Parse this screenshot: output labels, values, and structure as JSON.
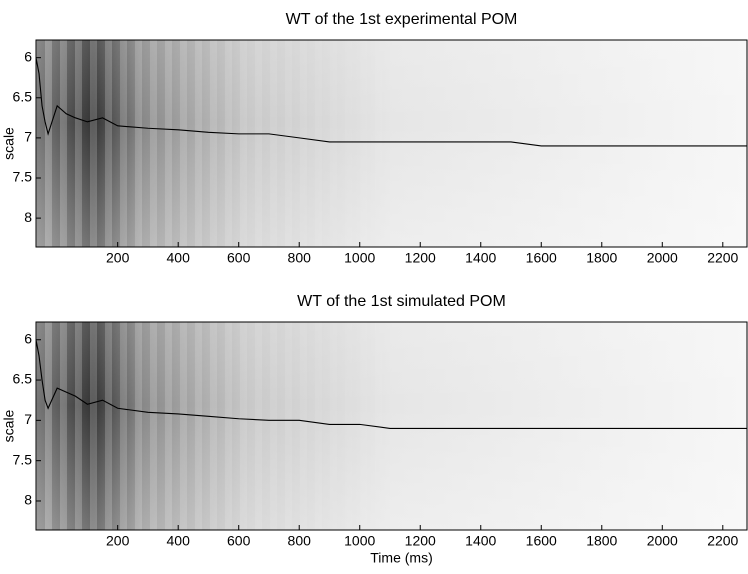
{
  "chart_data": [
    {
      "type": "line",
      "title": "WT of the 1st experimental POM",
      "ylabel": "scale",
      "xlim": [
        -70,
        2280
      ],
      "ylim": [
        5.78,
        8.36
      ],
      "y_inverted": true,
      "xticks": [
        200,
        400,
        600,
        800,
        1000,
        1200,
        1400,
        1600,
        1800,
        2000,
        2200
      ],
      "yticks": [
        6,
        6.5,
        7,
        7.5,
        8
      ],
      "series": [
        {
          "color": "#000000",
          "x": [
            -70,
            -60,
            -50,
            -40,
            -30,
            0,
            30,
            60,
            100,
            150,
            200,
            300,
            400,
            500,
            600,
            700,
            800,
            900,
            1000,
            1200,
            1400,
            1500,
            1600,
            1800,
            2000,
            2200,
            2280
          ],
          "values": [
            6.0,
            6.2,
            6.6,
            6.8,
            6.95,
            6.6,
            6.7,
            6.75,
            6.8,
            6.75,
            6.85,
            6.88,
            6.9,
            6.93,
            6.95,
            6.95,
            7.0,
            7.05,
            7.05,
            7.05,
            7.05,
            7.05,
            7.1,
            7.1,
            7.1,
            7.1,
            7.1
          ]
        }
      ]
    },
    {
      "type": "line",
      "title": "WT of the 1st simulated POM",
      "ylabel": "scale",
      "xlabel": "Time (ms)",
      "xlim": [
        -70,
        2280
      ],
      "ylim": [
        5.78,
        8.36
      ],
      "y_inverted": true,
      "xticks": [
        200,
        400,
        600,
        800,
        1000,
        1200,
        1400,
        1600,
        1800,
        2000,
        2200
      ],
      "yticks": [
        6,
        6.5,
        7,
        7.5,
        8
      ],
      "series": [
        {
          "color": "#000000",
          "x": [
            -70,
            -60,
            -50,
            -40,
            -30,
            0,
            30,
            60,
            100,
            150,
            200,
            300,
            400,
            500,
            600,
            700,
            800,
            900,
            1000,
            1100,
            1200,
            1400,
            1600,
            1800,
            2000,
            2200,
            2280
          ],
          "values": [
            6.0,
            6.2,
            6.5,
            6.75,
            6.85,
            6.6,
            6.65,
            6.7,
            6.8,
            6.75,
            6.85,
            6.9,
            6.92,
            6.95,
            6.98,
            7.0,
            7.0,
            7.05,
            7.05,
            7.1,
            7.1,
            7.1,
            7.1,
            7.1,
            7.1,
            7.1,
            7.1
          ]
        }
      ]
    }
  ]
}
